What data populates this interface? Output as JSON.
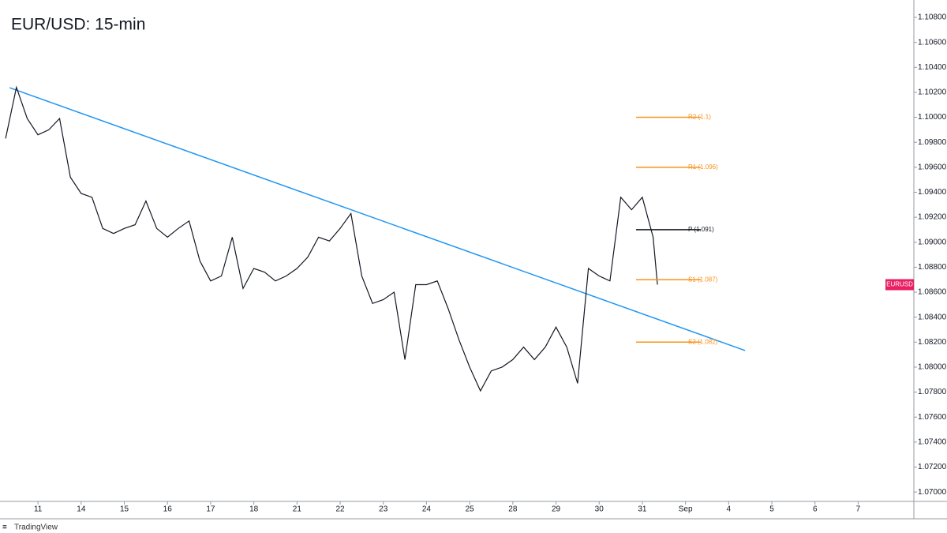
{
  "chart_data": {
    "type": "line",
    "title": "EUR/USD: 15-min",
    "watermark": "TradingView",
    "x": [
      0.25,
      0.5,
      0.75,
      1,
      1.25,
      1.5,
      1.75,
      2,
      2.25,
      2.5,
      2.75,
      3,
      3.25,
      3.5,
      3.75,
      4,
      4.25,
      4.5,
      4.75,
      5,
      5.25,
      5.5,
      5.75,
      6,
      6.25,
      6.5,
      6.75,
      7,
      7.25,
      7.5,
      7.75,
      8,
      8.25,
      8.5,
      8.75,
      9,
      9.25,
      9.5,
      9.75,
      10,
      10.25,
      10.5,
      10.75,
      11,
      11.25,
      11.5,
      11.75,
      12,
      12.25,
      12.5,
      12.75,
      13,
      13.25,
      13.5,
      13.75,
      14,
      14.25,
      14.5,
      14.75,
      15,
      15.25,
      15.35
    ],
    "series": [
      {
        "name": "EURUSD",
        "color": "#131722",
        "values": [
          1.0983,
          1.1024,
          1.0999,
          1.0986,
          1.099,
          1.0999,
          1.0952,
          1.0939,
          1.0936,
          1.0911,
          1.0907,
          1.0911,
          1.0914,
          1.0933,
          1.0911,
          1.0904,
          1.0911,
          1.0917,
          1.0885,
          1.0869,
          1.0873,
          1.0904,
          1.0863,
          1.0879,
          1.0876,
          1.0869,
          1.0873,
          1.0879,
          1.0888,
          1.0904,
          1.0901,
          1.0911,
          1.0923,
          1.0873,
          1.0851,
          1.0854,
          1.086,
          1.0806,
          1.0866,
          1.0866,
          1.0869,
          1.0847,
          1.0822,
          1.08,
          1.0781,
          1.0797,
          1.08,
          1.0806,
          1.0816,
          1.0806,
          1.0816,
          1.0832,
          1.0816,
          1.0787,
          1.0879,
          1.0873,
          1.0869,
          1.0936,
          1.0926,
          1.0936,
          1.0904,
          1.0866
        ]
      }
    ],
    "tag_color": "#e91e63",
    "trendline": {
      "x": [
        0.342,
        17.38
      ],
      "values": [
        1.10237,
        1.08133
      ],
      "color": "#2196f3"
    },
    "levels": [
      {
        "label": "R2 (1.1)",
        "value": 1.1,
        "color": "#f7931a"
      },
      {
        "label": "R1 (1.096)",
        "value": 1.096,
        "color": "#f7931a"
      },
      {
        "label": "P (1.091)",
        "value": 1.091,
        "color": "#131722"
      },
      {
        "label": "S1 (1.087)",
        "value": 1.087,
        "color": "#f7931a"
      },
      {
        "label": "S2 (1.082)",
        "value": 1.082,
        "color": "#f7931a"
      }
    ],
    "xlim": [
      0.12,
      21.29
    ],
    "xticks": [
      {
        "value": 1,
        "label": "11"
      },
      {
        "value": 2,
        "label": "14"
      },
      {
        "value": 3,
        "label": "15"
      },
      {
        "value": 4,
        "label": "16"
      },
      {
        "value": 5,
        "label": "17"
      },
      {
        "value": 6,
        "label": "18"
      },
      {
        "value": 7,
        "label": "21"
      },
      {
        "value": 8,
        "label": "22"
      },
      {
        "value": 9,
        "label": "23"
      },
      {
        "value": 10,
        "label": "24"
      },
      {
        "value": 11,
        "label": "25"
      },
      {
        "value": 12,
        "label": "28"
      },
      {
        "value": 13,
        "label": "29"
      },
      {
        "value": 14,
        "label": "30"
      },
      {
        "value": 15,
        "label": "31"
      },
      {
        "value": 16,
        "label": "Sep"
      },
      {
        "value": 17,
        "label": "4"
      },
      {
        "value": 18,
        "label": "5"
      },
      {
        "value": 19,
        "label": "6"
      },
      {
        "value": 20,
        "label": "7"
      }
    ],
    "ylim": [
      1.06925,
      1.10939
    ],
    "yticks": [
      {
        "value": 1.07,
        "label": "1.07000"
      },
      {
        "value": 1.072,
        "label": "1.07200"
      },
      {
        "value": 1.074,
        "label": "1.07400"
      },
      {
        "value": 1.076,
        "label": "1.07600"
      },
      {
        "value": 1.078,
        "label": "1.07800"
      },
      {
        "value": 1.08,
        "label": "1.08000"
      },
      {
        "value": 1.082,
        "label": "1.08200"
      },
      {
        "value": 1.084,
        "label": "1.08400"
      },
      {
        "value": 1.086,
        "label": "1.08600"
      },
      {
        "value": 1.088,
        "label": "1.08800"
      },
      {
        "value": 1.09,
        "label": "1.09000"
      },
      {
        "value": 1.092,
        "label": "1.09200"
      },
      {
        "value": 1.094,
        "label": "1.09400"
      },
      {
        "value": 1.096,
        "label": "1.09600"
      },
      {
        "value": 1.098,
        "label": "1.09800"
      },
      {
        "value": 1.1,
        "label": "1.10000"
      },
      {
        "value": 1.102,
        "label": "1.10200"
      },
      {
        "value": 1.104,
        "label": "1.10400"
      },
      {
        "value": 1.106,
        "label": "1.10600"
      },
      {
        "value": 1.108,
        "label": "1.10800"
      }
    ]
  }
}
